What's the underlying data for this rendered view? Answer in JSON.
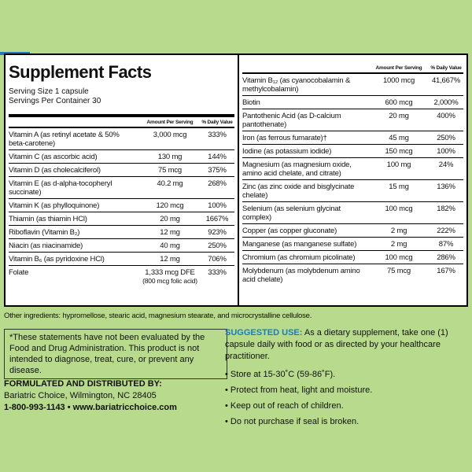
{
  "header": {
    "title": "Supplement Facts",
    "serving_size": "Serving Size 1 capsule",
    "servings_per_container": "Servings Per Container 30"
  },
  "columns": {
    "amount": "Amount Per Serving",
    "daily_value": "% Daily Value"
  },
  "left_rows": [
    {
      "name": "Vitamin A (as retinyl acetate & 50% beta-carotene)",
      "amount": "3,000 mcg",
      "dv": "333%"
    },
    {
      "name": "Vitamin C (as ascorbic acid)",
      "amount": "130 mg",
      "dv": "144%"
    },
    {
      "name": "Vitamin D (as cholecalciferol)",
      "amount": "75 mcg",
      "dv": "375%"
    },
    {
      "name": "Vitamin E (as d-alpha-tocopheryl succinate)",
      "amount": "40.2 mg",
      "dv": "268%"
    },
    {
      "name": "Vitamin K (as phylloquinone)",
      "amount": "120 mcg",
      "dv": "100%"
    },
    {
      "name": "Thiamin (as thiamin HCl)",
      "amount": "20 mg",
      "dv": "1667%"
    },
    {
      "name": "Riboflavin (Vitamin B₂)",
      "amount": "12 mg",
      "dv": "923%"
    },
    {
      "name": "Niacin (as niacinamide)",
      "amount": "40 mg",
      "dv": "250%"
    },
    {
      "name": "Vitamin B₆ (as pyridoxine HCl)",
      "amount": "12 mg",
      "dv": "706%"
    },
    {
      "name": "Folate",
      "amount": "1,333 mcg DFE",
      "note": "(800 mcg folic acid)",
      "dv": "333%"
    }
  ],
  "right_rows": [
    {
      "name": "Vitamin B₁₂ (as cyanocobalamin & methylcobalamin)",
      "amount": "1000 mcg",
      "dv": "41,667%"
    },
    {
      "name": "Biotin",
      "amount": "600 mcg",
      "dv": "2,000%"
    },
    {
      "name": "Pantothenic Acid (as D-calcium pantothenate)",
      "amount": "20 mg",
      "dv": "400%"
    },
    {
      "name": "Iron (as ferrous fumarate)†",
      "amount": "45 mg",
      "dv": "250%"
    },
    {
      "name": "Iodine (as potassium iodide)",
      "amount": "150 mcg",
      "dv": "100%"
    },
    {
      "name": "Magnesium (as magnesium oxide, amino acid chelate, and citrate)",
      "amount": "100 mg",
      "dv": "24%"
    },
    {
      "name": "Zinc (as zinc oxide and bisglycinate chelate)",
      "amount": "15 mg",
      "dv": "136%"
    },
    {
      "name": "Selenium (as selenium glycinat complex)",
      "amount": "100 mcg",
      "dv": "182%"
    },
    {
      "name": "Copper (as copper gluconate)",
      "amount": "2 mg",
      "dv": "222%"
    },
    {
      "name": "Manganese (as manganese sulfate)",
      "amount": "2 mg",
      "dv": "87%"
    },
    {
      "name": "Chromium (as chromium picolinate)",
      "amount": "100 mcg",
      "dv": "286%"
    },
    {
      "name": "Molybdenum (as molybdenum amino acid chelate)",
      "amount": "75 mcg",
      "dv": "167%"
    }
  ],
  "other_ingredients": "Other ingredients: hypromellose, stearic acid, magnesium stearate, and microcrystalline cellulose.",
  "disclaimer": "*These statements have not been evaluated by the Food and Drug Administration. This product is not intended to diagnose, treat, cure, or prevent any disease.",
  "distributor": {
    "heading": "FORMULATED AND DISTRIBUTED BY:",
    "address": "Bariatric Choice, Wilmington, NC 28405",
    "contact": "1-800-993-1143  •  www.bariatricchoice.com"
  },
  "suggested_use": {
    "label": "SUGGESTED USE:",
    "text": "As a dietary supplement, take one (1) capsule daily with food or as directed by your healthcare practitioner."
  },
  "bullets": [
    "Store at 15-30˚C (59-86˚F).",
    "Protect from heat, light and moisture.",
    "Keep out of reach of children.",
    "Do not purchase if seal is broken."
  ]
}
